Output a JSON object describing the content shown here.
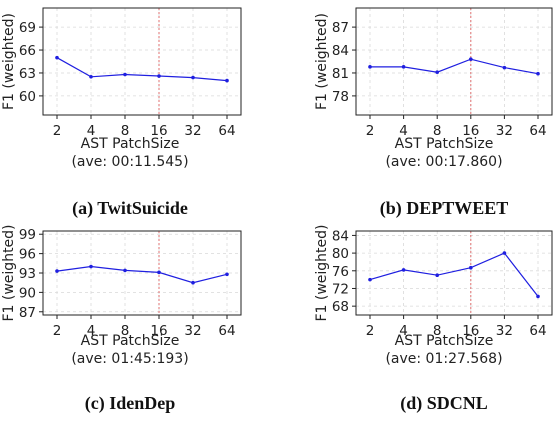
{
  "chart_data": [
    {
      "type": "line",
      "caption": "(a) TwitSuicide",
      "categories": [
        "2",
        "4",
        "8",
        "16",
        "32",
        "64"
      ],
      "values": [
        65.0,
        62.5,
        62.8,
        62.6,
        62.4,
        62.0
      ],
      "ylabel": "F1 (weighted)",
      "xlabel": "AST PatchSize",
      "subtitle": "(ave: 00:11.545)",
      "ylim": [
        57.5,
        71.5
      ],
      "yticks": [
        60,
        63,
        66,
        69
      ],
      "highlight_x": "16",
      "line_color": "#1f1fe0",
      "highlight_color": "#e07070",
      "grid": true
    },
    {
      "type": "line",
      "caption": "(b) DEPTWEET",
      "categories": [
        "2",
        "4",
        "8",
        "16",
        "32",
        "64"
      ],
      "values": [
        81.8,
        81.8,
        81.1,
        82.8,
        81.7,
        80.9
      ],
      "ylabel": "F1 (weighted)",
      "xlabel": "AST PatchSize",
      "subtitle": "(ave: 00:17.860)",
      "ylim": [
        75.5,
        89.5
      ],
      "yticks": [
        78,
        81,
        84,
        87
      ],
      "highlight_x": "16",
      "line_color": "#1f1fe0",
      "highlight_color": "#e07070",
      "grid": true
    },
    {
      "type": "line",
      "caption": "(c) IdenDep",
      "categories": [
        "2",
        "4",
        "8",
        "16",
        "32",
        "64"
      ],
      "values": [
        93.3,
        94.0,
        93.4,
        93.1,
        91.5,
        92.8
      ],
      "ylabel": "F1 (weighted)",
      "xlabel": "AST PatchSize",
      "subtitle": "(ave: 01:45:193)",
      "ylim": [
        86.5,
        99.5
      ],
      "yticks": [
        87,
        90,
        93,
        96,
        99
      ],
      "highlight_x": "16",
      "line_color": "#1f1fe0",
      "highlight_color": "#e07070",
      "grid": true
    },
    {
      "type": "line",
      "caption": "(d) SDCNL",
      "categories": [
        "2",
        "4",
        "8",
        "16",
        "32",
        "64"
      ],
      "values": [
        74.0,
        76.2,
        75.0,
        76.7,
        80.0,
        70.2
      ],
      "ylabel": "F1 (weighted)",
      "xlabel": "AST PatchSize",
      "subtitle": "(ave: 01:27.568)",
      "ylim": [
        66.0,
        85.0
      ],
      "yticks": [
        68,
        72,
        76,
        80,
        84
      ],
      "highlight_x": "16",
      "line_color": "#1f1fe0",
      "highlight_color": "#e07070",
      "grid": true
    }
  ]
}
